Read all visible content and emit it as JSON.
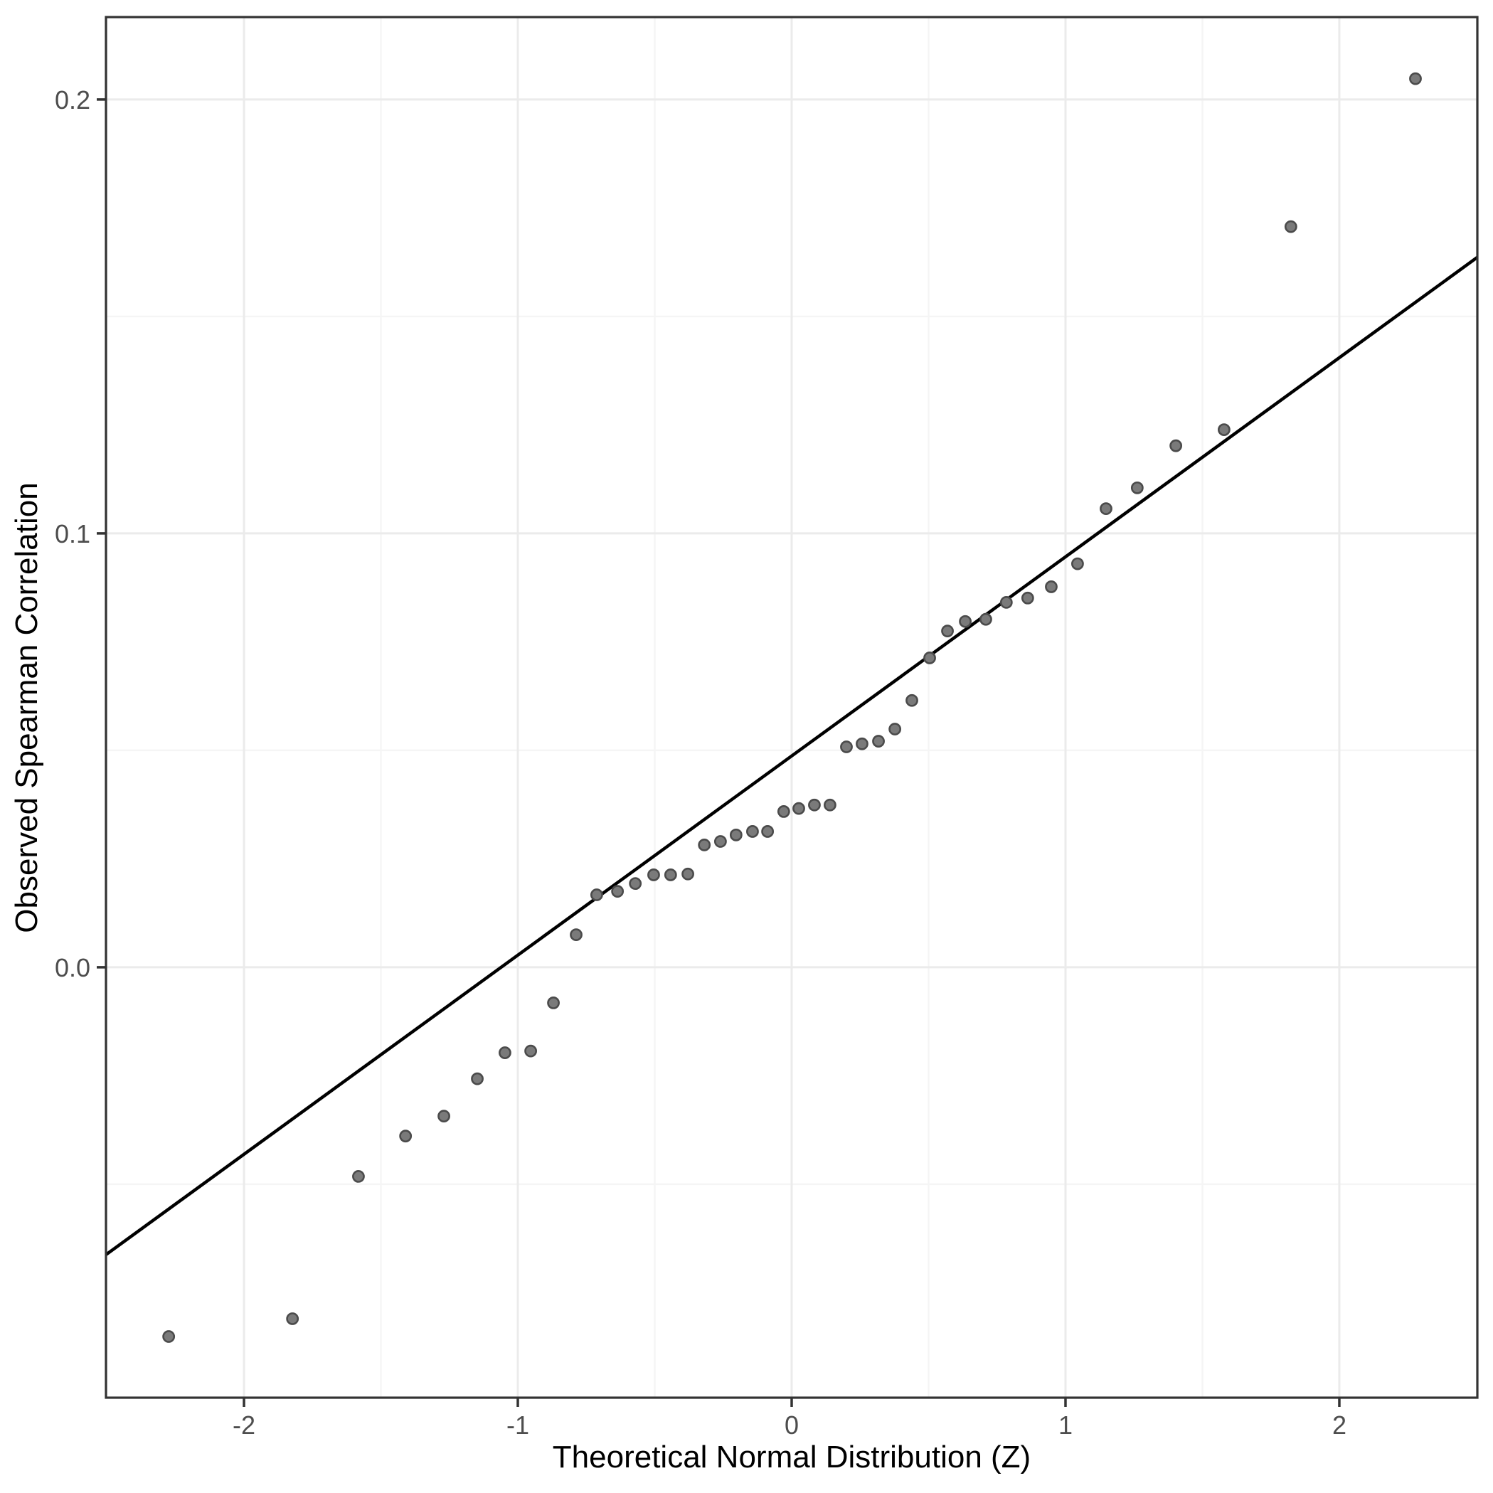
{
  "figure": {
    "kind": "qq-plot",
    "background": "#ffffff",
    "colors": {
      "panel_background": "#ffffff",
      "panel_border": "#333333",
      "grid_major": "#ebebeb",
      "grid_minor": "#f5f5f5",
      "point_fill": "#7a7a7a",
      "point_stroke": "#4b4b4b",
      "reference_line": "#000000",
      "tick_mark": "#333333",
      "tick_label": "#4d4d4d",
      "axis_title": "#000000"
    }
  },
  "chart_data": {
    "type": "scatter",
    "title": "",
    "xlabel": "Theoretical Normal Distribution (Z)",
    "ylabel": "Observed Spearman Correlation",
    "xlim": [
      -2.504,
      2.504
    ],
    "ylim": [
      -0.0992,
      0.219
    ],
    "x_ticks": [
      -2,
      -1,
      0,
      1,
      2
    ],
    "x_tick_labels": [
      "-2",
      "-1",
      "0",
      "1",
      "2"
    ],
    "x_minor_ticks": [
      -1.5,
      -0.5,
      0.5,
      1.5
    ],
    "y_ticks": [
      0.0,
      0.1,
      0.2
    ],
    "y_tick_labels": [
      "0.0",
      "0.1",
      "0.2"
    ],
    "y_minor_ticks": [
      -0.05,
      0.05,
      0.15
    ],
    "grid": "major+minor",
    "legend": "none",
    "n_points": 44,
    "points": [
      [
        -2.275,
        -0.0851
      ],
      [
        -1.823,
        -0.081
      ],
      [
        -1.582,
        -0.0482
      ],
      [
        -1.41,
        -0.0389
      ],
      [
        -1.27,
        -0.0343
      ],
      [
        -1.148,
        -0.0257
      ],
      [
        -1.047,
        -0.0197
      ],
      [
        -0.953,
        -0.0193
      ],
      [
        -0.87,
        -0.0082
      ],
      [
        -0.787,
        0.0075
      ],
      [
        -0.712,
        0.0167
      ],
      [
        -0.636,
        0.0175
      ],
      [
        -0.571,
        0.0193
      ],
      [
        -0.504,
        0.0213
      ],
      [
        -0.442,
        0.0213
      ],
      [
        -0.379,
        0.0215
      ],
      [
        -0.319,
        0.0282
      ],
      [
        -0.26,
        0.029
      ],
      [
        -0.203,
        0.0305
      ],
      [
        -0.143,
        0.0313
      ],
      [
        -0.088,
        0.0313
      ],
      [
        -0.029,
        0.0359
      ],
      [
        0.026,
        0.0366
      ],
      [
        0.083,
        0.0374
      ],
      [
        0.14,
        0.0374
      ],
      [
        0.2,
        0.0508
      ],
      [
        0.257,
        0.0515
      ],
      [
        0.317,
        0.0521
      ],
      [
        0.377,
        0.0549
      ],
      [
        0.439,
        0.0615
      ],
      [
        0.504,
        0.0713
      ],
      [
        0.569,
        0.0775
      ],
      [
        0.634,
        0.0797
      ],
      [
        0.709,
        0.0802
      ],
      [
        0.784,
        0.0841
      ],
      [
        0.862,
        0.0851
      ],
      [
        0.948,
        0.0877
      ],
      [
        1.044,
        0.093
      ],
      [
        1.148,
        0.1057
      ],
      [
        1.262,
        0.1105
      ],
      [
        1.403,
        0.1202
      ],
      [
        1.579,
        0.1239
      ],
      [
        1.823,
        0.1707
      ],
      [
        2.278,
        0.2048
      ]
    ],
    "reference_line": {
      "intercept": 0.0487,
      "slope": 0.0459
    }
  }
}
